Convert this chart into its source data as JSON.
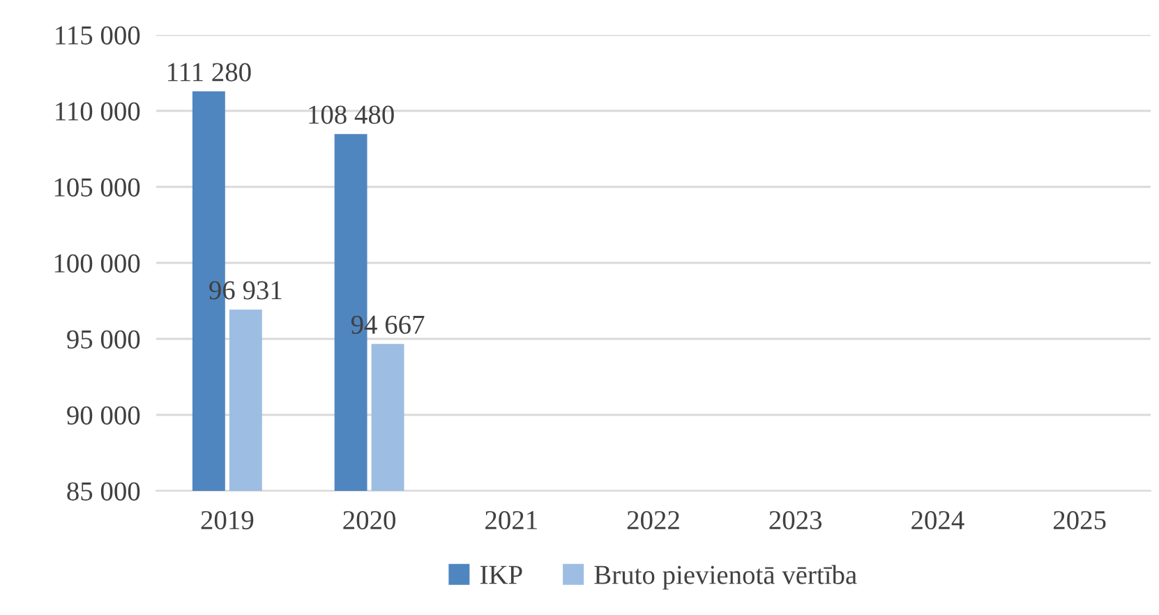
{
  "chart_data": {
    "type": "bar",
    "categories": [
      "2019",
      "2020",
      "2021",
      "2022",
      "2023",
      "2024",
      "2025"
    ],
    "series": [
      {
        "name": "IKP",
        "color": "#4f86c0",
        "values": [
          111280,
          108480,
          null,
          null,
          null,
          null,
          null
        ],
        "value_labels": [
          "111 280",
          "108 480",
          null,
          null,
          null,
          null,
          null
        ]
      },
      {
        "name": "Bruto pievienotā vērtība",
        "color": "#9dbde3",
        "values": [
          96931,
          94667,
          null,
          null,
          null,
          null,
          null
        ],
        "value_labels": [
          "96 931",
          "94 667",
          null,
          null,
          null,
          null,
          null
        ]
      }
    ],
    "ylim": [
      85000,
      115000
    ],
    "yticks": [
      {
        "value": 85000,
        "label": "85 000"
      },
      {
        "value": 90000,
        "label": "90 000"
      },
      {
        "value": 95000,
        "label": "95 000"
      },
      {
        "value": 100000,
        "label": "100 000"
      },
      {
        "value": 105000,
        "label": "105 000"
      },
      {
        "value": 110000,
        "label": "110 000"
      },
      {
        "value": 115000,
        "label": "115 000"
      }
    ],
    "grid": "y",
    "legend": "bottom"
  }
}
